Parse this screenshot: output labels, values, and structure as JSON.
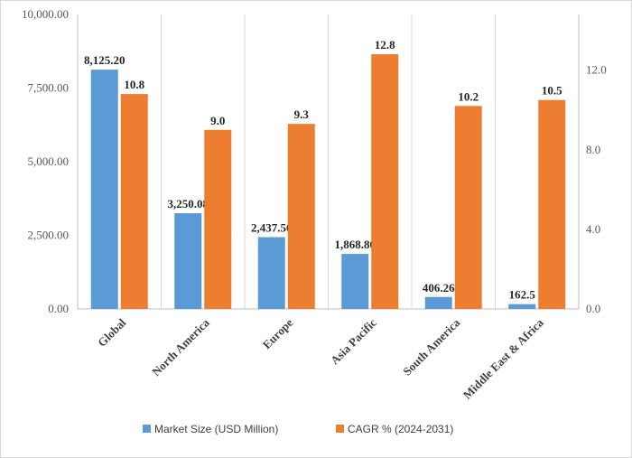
{
  "chart_data": {
    "type": "bar",
    "title": "",
    "categories": [
      "Global",
      "North America",
      "Europe",
      "Asia Pacific",
      "South America",
      "Middle East & Africa"
    ],
    "series": [
      {
        "name": "Market Size (USD Million)",
        "axis": "left",
        "color": "#5b9bd5",
        "values": [
          8125.2,
          3250.08,
          2437.56,
          1868.8,
          406.26,
          162.5
        ],
        "labels": [
          "8,125.20",
          "3,250.08",
          "2,437.56",
          "1,868.80",
          "406.26",
          "162.5"
        ]
      },
      {
        "name": "CAGR % (2024-2031)",
        "axis": "right",
        "color": "#ed7d31",
        "values": [
          10.8,
          9.0,
          9.3,
          12.8,
          10.2,
          10.5
        ],
        "labels": [
          "10.8",
          "9.0",
          "9.3",
          "12.8",
          "10.2",
          "10.5"
        ]
      }
    ],
    "y_left": {
      "min": 0,
      "max": 10000,
      "ticks": [
        0,
        2500,
        5000,
        7500,
        10000
      ],
      "tick_labels": [
        "0.00",
        "2,500.00",
        "5,000.00",
        "7,500.00",
        "10,000.00"
      ]
    },
    "y_right": {
      "min": 0,
      "max": 14.8,
      "ticks": [
        0,
        4,
        8,
        12
      ],
      "tick_labels": [
        "0.0",
        "4.0",
        "8.0",
        "12.0"
      ]
    },
    "grid": "vertical category separators",
    "legend": "bottom-center"
  }
}
